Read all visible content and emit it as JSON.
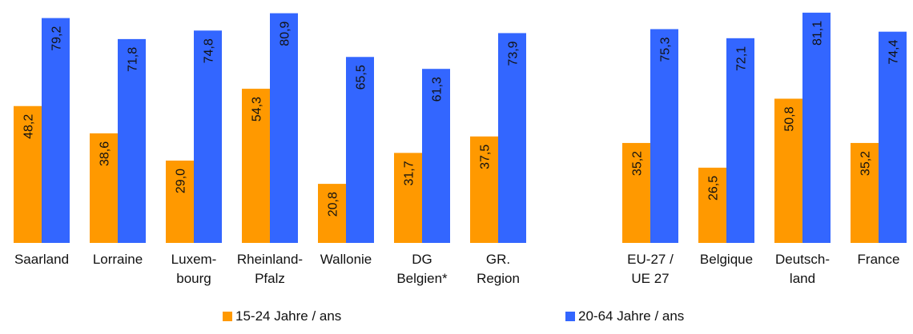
{
  "chart_data": {
    "type": "bar",
    "categories": [
      [
        "Saarland"
      ],
      [
        "Lorraine"
      ],
      [
        "Luxem-",
        "bourg"
      ],
      [
        "Rheinland-",
        "Pfalz"
      ],
      [
        "Wallonie"
      ],
      [
        "DG",
        "Belgien*"
      ],
      [
        "GR.",
        "Region"
      ],
      [
        "EU-27 /",
        "UE 27"
      ],
      [
        "Belgique"
      ],
      [
        "Deutsch-",
        "land"
      ],
      [
        "France"
      ]
    ],
    "series": [
      {
        "name": "15-24 Jahre / ans",
        "color": "#FF9900",
        "values": [
          48.2,
          38.6,
          29.0,
          54.3,
          20.8,
          31.7,
          37.5,
          35.2,
          26.5,
          50.8,
          35.2
        ],
        "labels": [
          "48,2",
          "38,6",
          "29,0",
          "54,3",
          "20,8",
          "31,7",
          "37,5",
          "35,2",
          "26,5",
          "50,8",
          "35,2"
        ]
      },
      {
        "name": "20-64 Jahre / ans",
        "color": "#3366FF",
        "values": [
          79.2,
          71.8,
          74.8,
          80.9,
          65.5,
          61.3,
          73.9,
          75.3,
          72.1,
          81.1,
          74.4
        ],
        "labels": [
          "79,2",
          "71,8",
          "74,8",
          "80,9",
          "65,5",
          "61,3",
          "73,9",
          "75,3",
          "72,1",
          "81,1",
          "74,4"
        ]
      }
    ],
    "ylim": [
      0,
      82
    ],
    "grid": false,
    "legend_position": "bottom",
    "data_labels": "rotated-inside-top"
  }
}
